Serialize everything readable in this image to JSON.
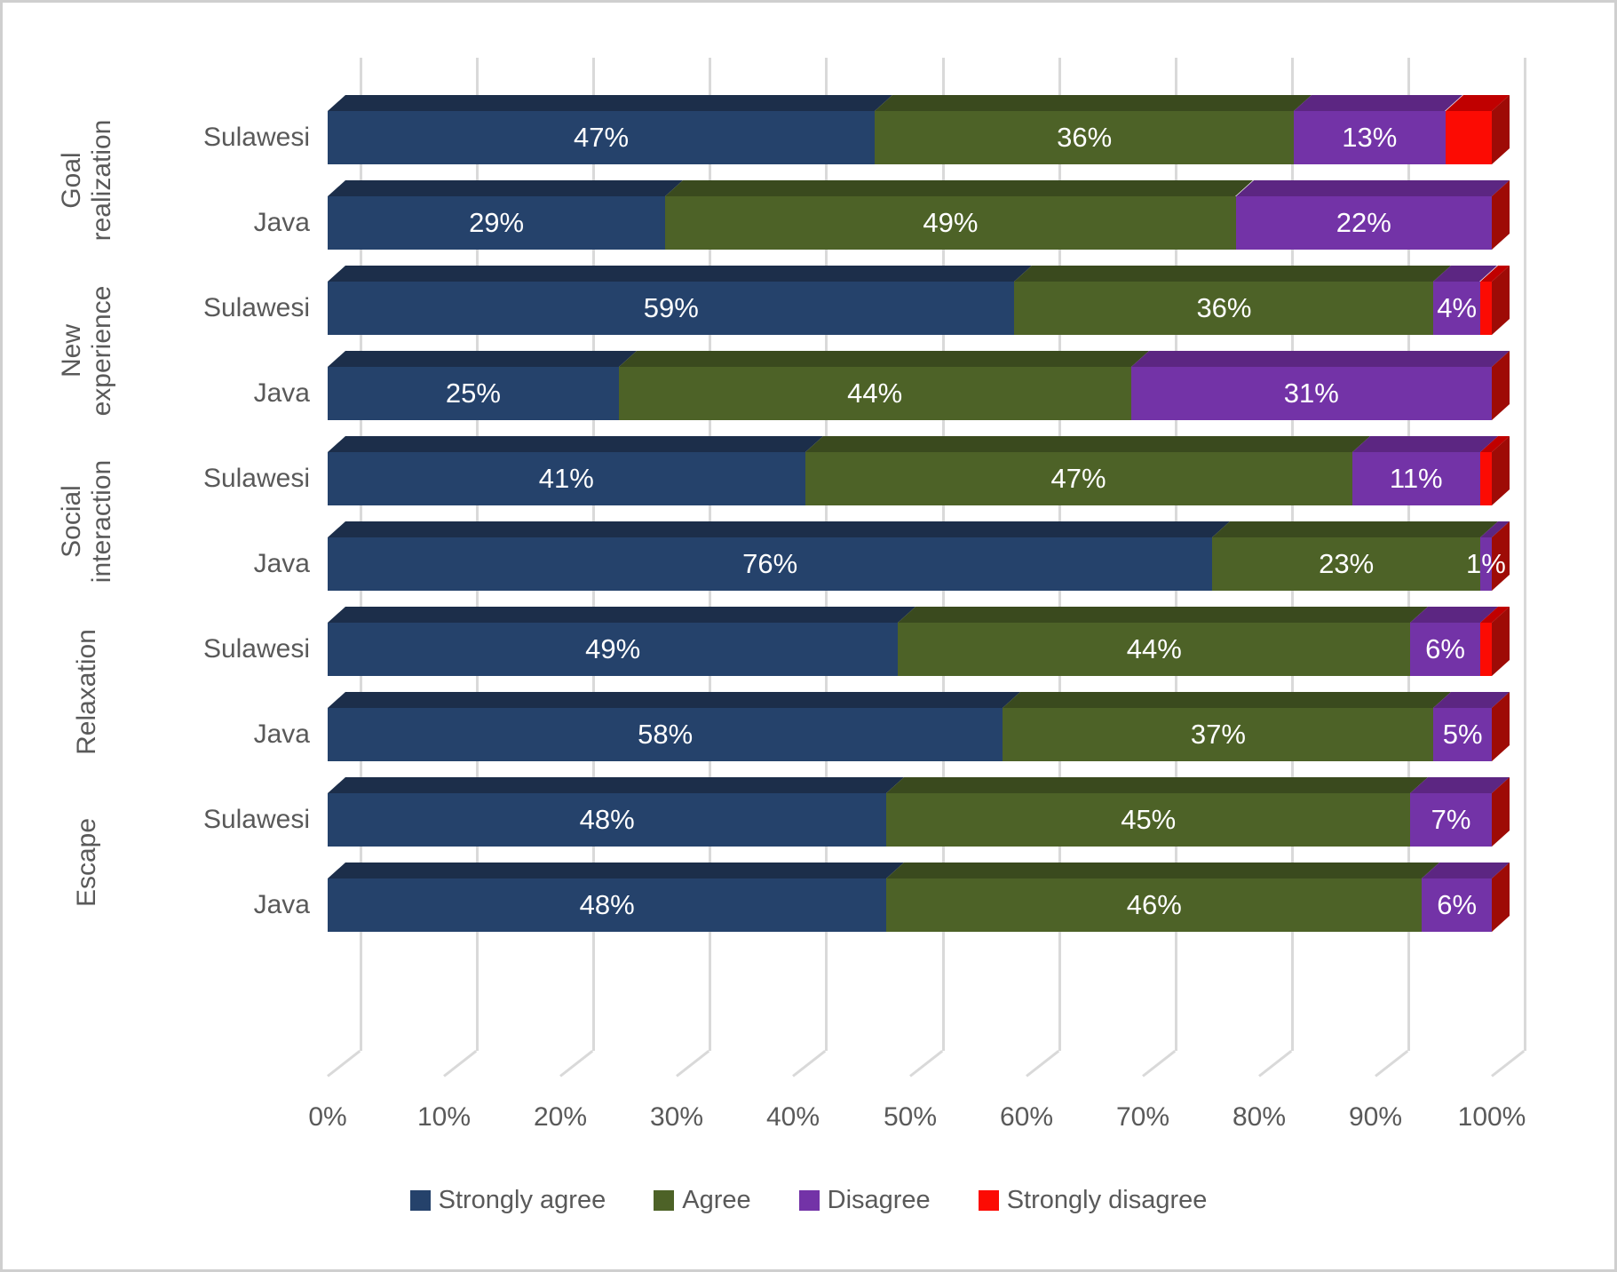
{
  "chart_data": {
    "type": "bar",
    "variant": "3d-horizontal-100pct-stacked",
    "title": "",
    "xlabel": "",
    "ylabel": "",
    "x_axis": {
      "min": 0,
      "max": 100,
      "tick_step": 10,
      "tick_labels": [
        "0%",
        "10%",
        "20%",
        "30%",
        "40%",
        "50%",
        "60%",
        "70%",
        "80%",
        "90%",
        "100%"
      ]
    },
    "grid": true,
    "groups": [
      {
        "label": "Goal\nrealization",
        "rows": [
          0,
          1
        ]
      },
      {
        "label": "New\nexperience",
        "rows": [
          2,
          3
        ]
      },
      {
        "label": "Social\ninteraction",
        "rows": [
          4,
          5
        ]
      },
      {
        "label": "Relaxation",
        "rows": [
          6,
          7
        ]
      },
      {
        "label": "Escape",
        "rows": [
          8,
          9
        ]
      }
    ],
    "categories": [
      "Sulawesi",
      "Java",
      "Sulawesi",
      "Java",
      "Sulawesi",
      "Java",
      "Sulawesi",
      "Java",
      "Sulawesi",
      "Java"
    ],
    "series": [
      {
        "name": "Strongly agree",
        "color": "#25426B",
        "top_color": "#1C2E4A",
        "show_labels": true,
        "values": [
          47,
          29,
          59,
          25,
          41,
          76,
          49,
          58,
          48,
          48
        ]
      },
      {
        "name": "Agree",
        "color": "#4D6227",
        "top_color": "#3A4A1E",
        "show_labels": true,
        "values": [
          36,
          49,
          36,
          44,
          47,
          23,
          44,
          37,
          45,
          46
        ]
      },
      {
        "name": "Disagree",
        "color": "#7333A7",
        "top_color": "#5C2682",
        "show_labels": true,
        "values": [
          13,
          22,
          4,
          31,
          11,
          1,
          6,
          5,
          7,
          6
        ]
      },
      {
        "name": "Strongly disagree",
        "color": "#FC0B03",
        "top_color": "#C00000",
        "show_labels": false,
        "values": [
          4,
          0,
          1,
          0,
          1,
          0,
          1,
          0,
          0,
          0
        ]
      }
    ],
    "label_suffix": "%",
    "data_label_color": "#FFFFFF",
    "end_cap_color": "#9E0B06",
    "gridline_color": "#D9D9D9",
    "axis_text_color": "#595959",
    "legend": {
      "position": "bottom",
      "items": [
        "Strongly agree",
        "Agree",
        "Disagree",
        "Strongly disagree"
      ]
    }
  }
}
